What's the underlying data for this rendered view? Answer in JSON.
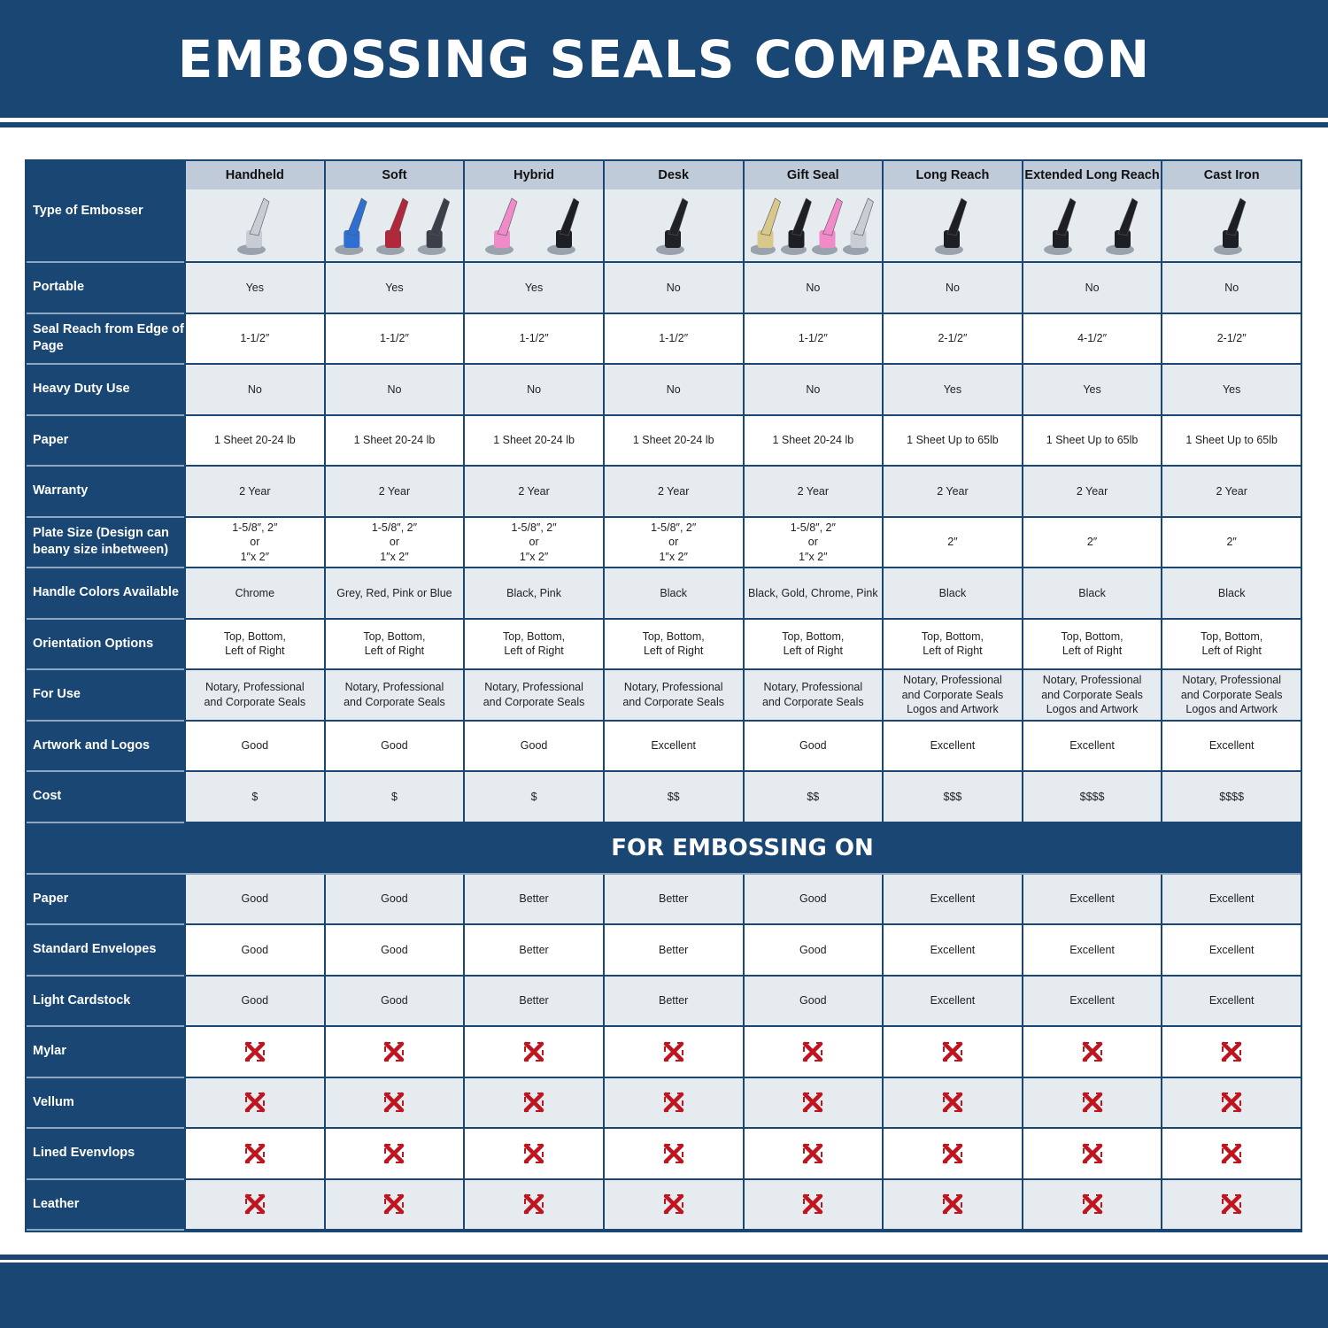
{
  "title": "EMBOSSING SEALS COMPARISON",
  "type_label": "Type of Embosser",
  "types": [
    {
      "name": "Handheld",
      "icon": "chrome-handheld-embosser",
      "colors": [
        "#c8ccd4"
      ]
    },
    {
      "name": "Soft",
      "icon": "soft-embossers-blue-red-grey",
      "colors": [
        "#2f6fd1",
        "#b2283a",
        "#3a3f4a"
      ]
    },
    {
      "name": "Hybrid",
      "icon": "hybrid-embossers-pink-black",
      "colors": [
        "#f08ac8",
        "#1d1f24"
      ]
    },
    {
      "name": "Desk",
      "icon": "desk-embosser",
      "colors": [
        "#202226"
      ]
    },
    {
      "name": "Gift Seal",
      "icon": "gift-seals-gold-black-pink-chrome",
      "colors": [
        "#d8c98a",
        "#1d1f24",
        "#f08ac8",
        "#c8ccd4"
      ]
    },
    {
      "name": "Long Reach",
      "icon": "long-reach-embosser",
      "colors": [
        "#1d1f24"
      ]
    },
    {
      "name": "Extended Long Reach",
      "icon": "extended-long-reach-embossers",
      "colors": [
        "#1d1f24",
        "#1d1f24"
      ]
    },
    {
      "name": "Cast Iron",
      "icon": "cast-iron-embosser",
      "colors": [
        "#1d1f24"
      ]
    }
  ],
  "rows": [
    {
      "label": "Portable",
      "values": [
        "Yes",
        "Yes",
        "Yes",
        "No",
        "No",
        "No",
        "No",
        "No"
      ]
    },
    {
      "label": "Seal Reach from Edge of Page",
      "values": [
        "1-1/2″",
        "1-1/2″",
        "1-1/2″",
        "1-1/2″",
        "1-1/2″",
        "2-1/2″",
        "4-1/2″",
        "2-1/2″"
      ]
    },
    {
      "label": "Heavy Duty Use",
      "values": [
        "No",
        "No",
        "No",
        "No",
        "No",
        "Yes",
        "Yes",
        "Yes"
      ]
    },
    {
      "label": "Paper",
      "values": [
        "1 Sheet 20-24 lb",
        "1 Sheet 20-24 lb",
        "1 Sheet 20-24 lb",
        "1 Sheet 20-24 lb",
        "1 Sheet 20-24 lb",
        "1 Sheet Up to 65lb",
        "1 Sheet Up to 65lb",
        "1 Sheet Up to 65lb"
      ]
    },
    {
      "label": "Warranty",
      "values": [
        "2 Year",
        "2 Year",
        "2 Year",
        "2 Year",
        "2 Year",
        "2 Year",
        "2 Year",
        "2 Year"
      ]
    },
    {
      "label": "Plate Size (Design can beany size inbetween)",
      "values": [
        "1-5/8″, 2″\nor\n1″x 2″",
        "1-5/8″, 2″\nor\n1″x 2″",
        "1-5/8″, 2″\nor\n1″x 2″",
        "1-5/8″, 2″\nor\n1″x 2″",
        "1-5/8″, 2″\nor\n1″x 2″",
        "2″",
        "2″",
        "2″"
      ]
    },
    {
      "label": "Handle Colors Available",
      "values": [
        "Chrome",
        "Grey, Red, Pink or Blue",
        "Black, Pink",
        "Black",
        "Black, Gold, Chrome, Pink",
        "Black",
        "Black",
        "Black"
      ]
    },
    {
      "label": "Orientation Options",
      "values": [
        "Top, Bottom,\nLeft of Right",
        "Top, Bottom,\nLeft of Right",
        "Top, Bottom,\nLeft of Right",
        "Top, Bottom,\nLeft of Right",
        "Top, Bottom,\nLeft of Right",
        "Top, Bottom,\nLeft of Right",
        "Top, Bottom,\nLeft of Right",
        "Top, Bottom,\nLeft of Right"
      ]
    },
    {
      "label": "For Use",
      "values": [
        "Notary, Professional\nand Corporate Seals",
        "Notary, Professional\nand Corporate Seals",
        "Notary, Professional\nand Corporate Seals",
        "Notary, Professional\nand Corporate Seals",
        "Notary, Professional\nand Corporate Seals",
        "Notary, Professional\nand Corporate Seals\nLogos and Artwork",
        "Notary, Professional\nand Corporate Seals\nLogos and Artwork",
        "Notary, Professional\nand Corporate Seals\nLogos and Artwork"
      ]
    },
    {
      "label": "Artwork and Logos",
      "values": [
        "Good",
        "Good",
        "Good",
        "Excellent",
        "Good",
        "Excellent",
        "Excellent",
        "Excellent"
      ]
    },
    {
      "label": "Cost",
      "values": [
        "$",
        "$",
        "$",
        "$$",
        "$$",
        "$$$",
        "$$$$",
        "$$$$"
      ]
    }
  ],
  "section_title": "FOR EMBOSSING ON",
  "surface_rows": [
    {
      "label": "Paper",
      "values": [
        "Good",
        "Good",
        "Better",
        "Better",
        "Good",
        "Excellent",
        "Excellent",
        "Excellent"
      ]
    },
    {
      "label": "Standard Envelopes",
      "values": [
        "Good",
        "Good",
        "Better",
        "Better",
        "Good",
        "Excellent",
        "Excellent",
        "Excellent"
      ]
    },
    {
      "label": "Light Cardstock",
      "values": [
        "Good",
        "Good",
        "Better",
        "Better",
        "Good",
        "Excellent",
        "Excellent",
        "Excellent"
      ]
    },
    {
      "label": "Mylar",
      "icon": "red-x-icon"
    },
    {
      "label": "Vellum",
      "icon": "red-x-icon"
    },
    {
      "label": "Lined Evenvlops",
      "icon": "red-x-icon"
    },
    {
      "label": "Leather",
      "icon": "red-x-icon"
    }
  ],
  "colors": {
    "brand": "#1a4673",
    "header_cell": "#bfcbd9",
    "row_alt": "#e6ebf0",
    "x_mark": "#c0141f"
  }
}
